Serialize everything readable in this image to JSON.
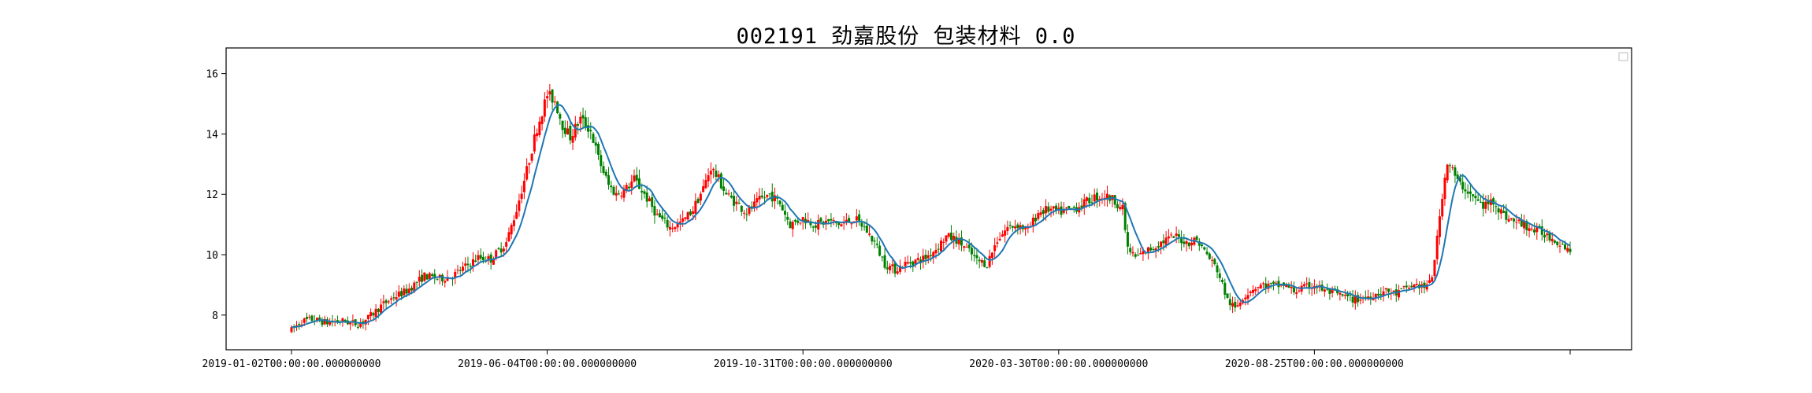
{
  "chart_data": {
    "type": "candlestick",
    "title": "002191 劲嘉股份 包装材料 0.0",
    "x_tick_labels": [
      "2019-01-02T00:00:00.000000000",
      "2019-06-04T00:00:00.000000000",
      "2019-10-31T00:00:00.000000000",
      "2020-03-30T00:00:00.000000000",
      "2020-08-25T00:00:00.000000000",
      ""
    ],
    "y_ticks": [
      8,
      10,
      12,
      14,
      16
    ],
    "ylim": [
      6.85,
      16.85
    ],
    "x_range": [
      0,
      500
    ],
    "grid": false,
    "legend": "top-right (empty)",
    "up_color": "#ff0000",
    "down_color": "#008000",
    "ma_color": "#1f77b4",
    "price_path": [
      [
        0,
        7.5
      ],
      [
        4,
        7.8
      ],
      [
        8,
        7.85
      ],
      [
        14,
        7.75
      ],
      [
        20,
        7.8
      ],
      [
        26,
        7.7
      ],
      [
        30,
        7.9
      ],
      [
        35,
        8.3
      ],
      [
        40,
        8.6
      ],
      [
        45,
        8.8
      ],
      [
        52,
        9.3
      ],
      [
        58,
        9.2
      ],
      [
        63,
        9.3
      ],
      [
        68,
        9.6
      ],
      [
        73,
        9.9
      ],
      [
        78,
        9.85
      ],
      [
        84,
        10.4
      ],
      [
        88,
        11.5
      ],
      [
        92,
        12.8
      ],
      [
        96,
        14.2
      ],
      [
        100,
        15.3
      ],
      [
        103,
        15.1
      ],
      [
        106,
        14.3
      ],
      [
        109,
        13.9
      ],
      [
        113,
        14.5
      ],
      [
        117,
        14.1
      ],
      [
        120,
        13.2
      ],
      [
        124,
        12.3
      ],
      [
        127,
        12.0
      ],
      [
        131,
        12.2
      ],
      [
        134,
        12.5
      ],
      [
        138,
        12.0
      ],
      [
        143,
        11.3
      ],
      [
        148,
        10.9
      ],
      [
        153,
        11.1
      ],
      [
        157,
        11.5
      ],
      [
        161,
        12.2
      ],
      [
        164,
        12.9
      ],
      [
        167,
        12.5
      ],
      [
        170,
        12.0
      ],
      [
        174,
        11.7
      ],
      [
        178,
        11.4
      ],
      [
        183,
        11.8
      ],
      [
        187,
        12.0
      ],
      [
        191,
        11.7
      ],
      [
        195,
        11.0
      ],
      [
        200,
        11.2
      ],
      [
        205,
        11.0
      ],
      [
        210,
        11.1
      ],
      [
        215,
        11.0
      ],
      [
        220,
        11.2
      ],
      [
        224,
        10.9
      ],
      [
        228,
        10.4
      ],
      [
        232,
        9.7
      ],
      [
        236,
        9.5
      ],
      [
        240,
        9.7
      ],
      [
        244,
        9.8
      ],
      [
        248,
        9.9
      ],
      [
        252,
        10.2
      ],
      [
        256,
        10.6
      ],
      [
        260,
        10.5
      ],
      [
        264,
        10.2
      ],
      [
        268,
        9.8
      ],
      [
        272,
        9.7
      ],
      [
        276,
        10.5
      ],
      [
        280,
        10.9
      ],
      [
        284,
        11.0
      ],
      [
        288,
        10.8
      ],
      [
        292,
        11.4
      ],
      [
        296,
        11.5
      ],
      [
        300,
        11.4
      ],
      [
        305,
        11.5
      ],
      [
        310,
        11.7
      ],
      [
        314,
        11.9
      ],
      [
        318,
        11.95
      ],
      [
        322,
        11.8
      ],
      [
        325,
        11.5
      ],
      [
        327,
        10.2
      ],
      [
        330,
        9.9
      ],
      [
        334,
        10.1
      ],
      [
        338,
        10.3
      ],
      [
        342,
        10.5
      ],
      [
        346,
        10.6
      ],
      [
        350,
        10.4
      ],
      [
        354,
        10.5
      ],
      [
        358,
        10.0
      ],
      [
        362,
        9.5
      ],
      [
        366,
        8.5
      ],
      [
        369,
        8.2
      ],
      [
        372,
        8.6
      ],
      [
        376,
        8.9
      ],
      [
        380,
        9.0
      ],
      [
        384,
        8.95
      ],
      [
        388,
        9.0
      ],
      [
        392,
        8.8
      ],
      [
        396,
        8.9
      ],
      [
        400,
        9.0
      ],
      [
        404,
        8.8
      ],
      [
        408,
        8.7
      ],
      [
        412,
        8.6
      ],
      [
        416,
        8.5
      ],
      [
        420,
        8.6
      ],
      [
        424,
        8.7
      ],
      [
        428,
        8.8
      ],
      [
        432,
        8.7
      ],
      [
        436,
        8.9
      ],
      [
        440,
        9.0
      ],
      [
        444,
        8.9
      ],
      [
        446,
        9.3
      ],
      [
        448,
        10.5
      ],
      [
        450,
        12.0
      ],
      [
        452,
        13.1
      ],
      [
        454,
        12.8
      ],
      [
        456,
        12.4
      ],
      [
        459,
        12.2
      ],
      [
        462,
        11.9
      ],
      [
        466,
        11.6
      ],
      [
        470,
        11.8
      ],
      [
        474,
        11.3
      ],
      [
        478,
        11.1
      ],
      [
        482,
        11.0
      ],
      [
        486,
        10.8
      ],
      [
        490,
        10.7
      ],
      [
        494,
        10.5
      ],
      [
        498,
        10.3
      ],
      [
        500,
        10.1
      ]
    ]
  }
}
